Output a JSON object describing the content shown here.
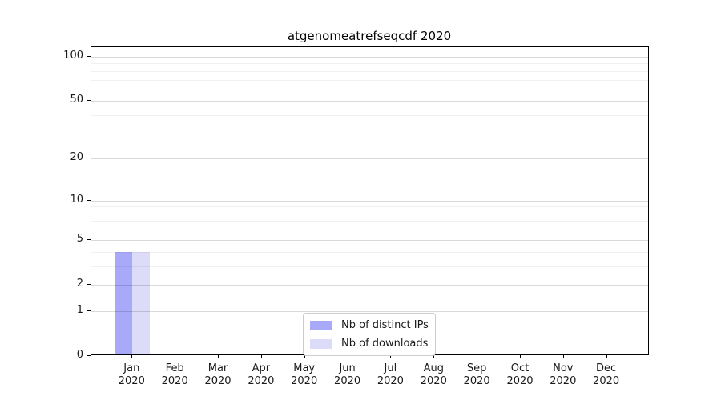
{
  "chart_data": {
    "type": "bar",
    "title": "atgenomeatrefseqcdf 2020",
    "categories": [
      "Jan",
      "Feb",
      "Mar",
      "Apr",
      "May",
      "Jun",
      "Jul",
      "Aug",
      "Sep",
      "Oct",
      "Nov",
      "Dec"
    ],
    "category_year": "2020",
    "series": [
      {
        "name": "Nb of distinct IPs",
        "color": "#a9a9f9",
        "values": [
          4,
          0,
          0,
          0,
          0,
          0,
          0,
          0,
          0,
          0,
          0,
          0
        ]
      },
      {
        "name": "Nb of downloads",
        "color": "#dcdcf9",
        "values": [
          4,
          0,
          0,
          0,
          0,
          0,
          0,
          0,
          0,
          0,
          0,
          0
        ]
      }
    ],
    "xlabel": "",
    "ylabel": "",
    "y_scale": "log1p",
    "ylim": [
      0,
      116
    ],
    "y_major_ticks": [
      0,
      1,
      2,
      5,
      10,
      20,
      50,
      100
    ],
    "y_minor_gridline_values": [
      3,
      4,
      6,
      7,
      8,
      9,
      30,
      40,
      60,
      70,
      80,
      90
    ],
    "grid": "horizontal, both major and minor, drawn over bars",
    "legend_position": "lower center",
    "colors": {
      "axis": "#000000",
      "text": "#1a1a1a",
      "major_grid": "#d9d9d9",
      "minor_grid": "#efefef",
      "legend_border": "#cccccc",
      "background": "#ffffff"
    }
  }
}
